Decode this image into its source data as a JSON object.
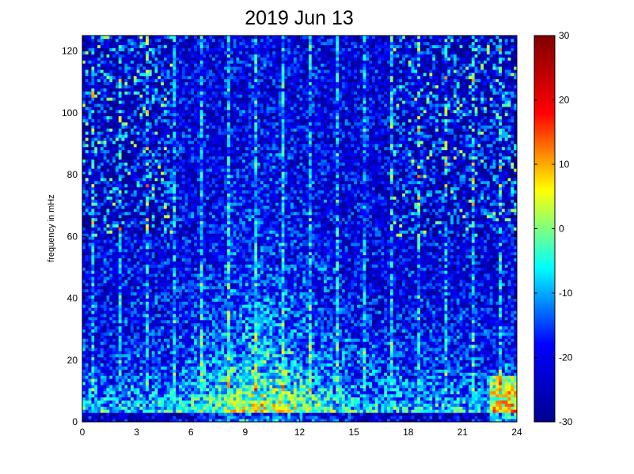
{
  "chart_data": {
    "type": "heatmap",
    "title": "2019 Jun 13",
    "xlabel": "",
    "ylabel": "frequency in mHz",
    "xlim": [
      0,
      24
    ],
    "ylim": [
      0,
      125
    ],
    "x_ticks": [
      "0",
      "3",
      "6",
      "9",
      "12",
      "15",
      "18",
      "21",
      "24"
    ],
    "y_ticks": [
      "0",
      "20",
      "40",
      "60",
      "80",
      "100",
      "120"
    ],
    "colorbar": {
      "colormap": "jet",
      "clim": [
        -30,
        30
      ],
      "ticks": [
        "-30",
        "-20",
        "-10",
        "0",
        "10",
        "20",
        "30"
      ]
    },
    "x_bin_count": 144,
    "y_bin_count": 125
  },
  "colors": {
    "jet_stops": [
      "#00008f",
      "#0000ff",
      "#00ffff",
      "#ffff00",
      "#ff0000",
      "#800000"
    ]
  }
}
